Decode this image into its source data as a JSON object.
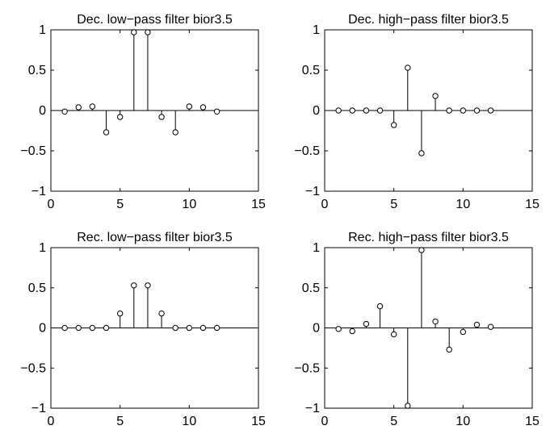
{
  "chart_data": [
    {
      "type": "stem",
      "title": "Dec. low−pass filter bior3.5",
      "xlim": [
        0,
        15
      ],
      "ylim": [
        -1,
        1
      ],
      "xticks": [
        0,
        5,
        10,
        15
      ],
      "yticks": [
        1,
        0.5,
        0,
        -0.5,
        -1
      ],
      "xtick_labels": [
        "0",
        "5",
        "10",
        "15"
      ],
      "ytick_labels": [
        "1",
        "0.5",
        "0",
        "−0.5",
        "−1"
      ],
      "x": [
        1,
        2,
        3,
        4,
        5,
        6,
        7,
        8,
        9,
        10,
        11,
        12
      ],
      "y": [
        -0.013,
        0.04,
        0.05,
        -0.27,
        -0.08,
        0.97,
        0.97,
        -0.08,
        -0.27,
        0.05,
        0.04,
        -0.013
      ]
    },
    {
      "type": "stem",
      "title": "Dec. high−pass filter bior3.5",
      "xlim": [
        0,
        15
      ],
      "ylim": [
        -1,
        1
      ],
      "xticks": [
        0,
        5,
        10,
        15
      ],
      "yticks": [
        1,
        0.5,
        0,
        -0.5,
        -1
      ],
      "xtick_labels": [
        "0",
        "5",
        "10",
        "15"
      ],
      "ytick_labels": [
        "1",
        "0.5",
        "0",
        "−0.5",
        "−1"
      ],
      "x": [
        1,
        2,
        3,
        4,
        5,
        6,
        7,
        8,
        9,
        10,
        11,
        12
      ],
      "y": [
        0,
        0,
        0,
        0,
        -0.18,
        0.53,
        -0.53,
        0.18,
        0,
        0,
        0,
        0
      ]
    },
    {
      "type": "stem",
      "title": "Rec. low−pass filter bior3.5",
      "xlim": [
        0,
        15
      ],
      "ylim": [
        -1,
        1
      ],
      "xticks": [
        0,
        5,
        10,
        15
      ],
      "yticks": [
        1,
        0.5,
        0,
        -0.5,
        -1
      ],
      "xtick_labels": [
        "0",
        "5",
        "10",
        "15"
      ],
      "ytick_labels": [
        "1",
        "0.5",
        "0",
        "−0.5",
        "−1"
      ],
      "x": [
        1,
        2,
        3,
        4,
        5,
        6,
        7,
        8,
        9,
        10,
        11,
        12
      ],
      "y": [
        0,
        0,
        0,
        0,
        0.18,
        0.53,
        0.53,
        0.18,
        0,
        0,
        0,
        0
      ]
    },
    {
      "type": "stem",
      "title": "Rec. high−pass filter bior3.5",
      "xlim": [
        0,
        15
      ],
      "ylim": [
        -1,
        1
      ],
      "xticks": [
        0,
        5,
        10,
        15
      ],
      "yticks": [
        1,
        0.5,
        0,
        -0.5,
        -1
      ],
      "xtick_labels": [
        "0",
        "5",
        "10",
        "15"
      ],
      "ytick_labels": [
        "1",
        "0.5",
        "0",
        "−0.5",
        "−1"
      ],
      "x": [
        1,
        2,
        3,
        4,
        5,
        6,
        7,
        8,
        9,
        10,
        11,
        12
      ],
      "y": [
        -0.013,
        -0.04,
        0.05,
        0.27,
        -0.08,
        -0.97,
        0.97,
        0.08,
        -0.27,
        -0.05,
        0.04,
        0.013
      ]
    }
  ]
}
